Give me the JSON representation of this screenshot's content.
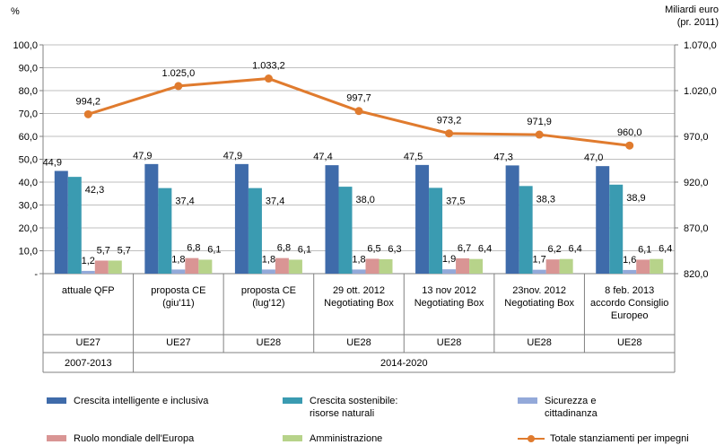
{
  "chart_data": {
    "type": "bar+line",
    "title": "",
    "ylabel_left": "%",
    "ylabel_right": "Miliardi euro (pr. 2011)",
    "ylabel_right_lines": [
      "Miliardi euro",
      "(pr. 2011)"
    ],
    "ylim_left": [
      0,
      100
    ],
    "ylim_right": [
      820,
      1070
    ],
    "yticks_left": [
      "-",
      "10,0",
      "20,0",
      "30,0",
      "40,0",
      "50,0",
      "60,0",
      "70,0",
      "80,0",
      "90,0",
      "100,0"
    ],
    "yticks_right": [
      "820,0",
      "870,0",
      "920,0",
      "970,0",
      "1.020,0",
      "1.070,0"
    ],
    "categories": [
      [
        "attuale QFP"
      ],
      [
        "proposta CE",
        "(giu'11)"
      ],
      [
        "proposta CE",
        "(lug'12)"
      ],
      [
        "29 ott. 2012",
        "Negotiating Box"
      ],
      [
        "13 nov 2012",
        "Negotiating Box"
      ],
      [
        "23nov. 2012",
        "Negotiating Box"
      ],
      [
        "8 feb. 2013",
        "accordo Consiglio",
        "Europeo"
      ]
    ],
    "category_group": [
      "UE27",
      "UE27",
      "UE28",
      "UE28",
      "UE28",
      "UE28",
      "UE28"
    ],
    "periods": [
      {
        "label": "2007-2013",
        "span": [
          0,
          0
        ]
      },
      {
        "label": "2014-2020",
        "span": [
          1,
          6
        ]
      }
    ],
    "series": [
      {
        "name": "Crescita intelligente e inclusiva",
        "color": "#3F6BAA",
        "values": [
          44.9,
          47.9,
          47.9,
          47.4,
          47.5,
          47.3,
          47.0
        ],
        "labels": [
          "44,9",
          "47,9",
          "47,9",
          "47,4",
          "47,5",
          "47,3",
          "47,0"
        ]
      },
      {
        "name": "Crescita sostenibile: risorse naturali",
        "color": "#3A9BB1",
        "values": [
          42.3,
          37.4,
          37.4,
          38.0,
          37.5,
          38.3,
          38.9
        ],
        "labels": [
          "42,3",
          "37,4",
          "37,4",
          "38,0",
          "37,5",
          "38,3",
          "38,9"
        ]
      },
      {
        "name": "Sicurezza e cittadinanza",
        "color": "#93A9D9",
        "values": [
          1.2,
          1.8,
          1.8,
          1.8,
          1.9,
          1.7,
          1.6
        ],
        "labels": [
          "1,2",
          "1,8",
          "1,8",
          "1,8",
          "1,9",
          "1,7",
          "1,6"
        ]
      },
      {
        "name": "Ruolo mondiale dell'Europa",
        "color": "#D99594",
        "values": [
          5.7,
          6.8,
          6.8,
          6.5,
          6.7,
          6.2,
          6.1
        ],
        "labels": [
          "5,7",
          "6,8",
          "6,8",
          "6,5",
          "6,7",
          "6,2",
          "6,1"
        ]
      },
      {
        "name": "Amministrazione",
        "color": "#B7D38A",
        "values": [
          5.7,
          6.1,
          6.1,
          6.3,
          6.4,
          6.4,
          6.4
        ],
        "labels": [
          "5,7",
          "6,1",
          "6,1",
          "6,3",
          "6,4",
          "6,4",
          "6,4"
        ]
      }
    ],
    "line_series": {
      "name": "Totale stanziamenti per impegni",
      "color": "#E07B2E",
      "axis": "right",
      "values": [
        994.2,
        1025.0,
        1033.2,
        997.7,
        973.2,
        971.9,
        960.0
      ],
      "labels": [
        "994,2",
        "1.025,0",
        "1.033,2",
        "997,7",
        "973,2",
        "971,9",
        "960,0"
      ]
    },
    "grid": true,
    "legend_position": "bottom"
  },
  "legend": {
    "items": [
      {
        "lines": [
          "Crescita intelligente e inclusiva"
        ],
        "color": "#3F6BAA",
        "kind": "bar"
      },
      {
        "lines": [
          "Crescita sostenibile:",
          "risorse naturali"
        ],
        "color": "#3A9BB1",
        "kind": "bar"
      },
      {
        "lines": [
          "Sicurezza e",
          "cittadinanza"
        ],
        "color": "#93A9D9",
        "kind": "bar"
      },
      {
        "lines": [
          "Ruolo mondiale dell'Europa"
        ],
        "color": "#D99594",
        "kind": "bar"
      },
      {
        "lines": [
          "Amministrazione"
        ],
        "color": "#B7D38A",
        "kind": "bar"
      },
      {
        "lines": [
          "Totale stanziamenti  per impegni"
        ],
        "color": "#E07B2E",
        "kind": "line"
      }
    ]
  }
}
